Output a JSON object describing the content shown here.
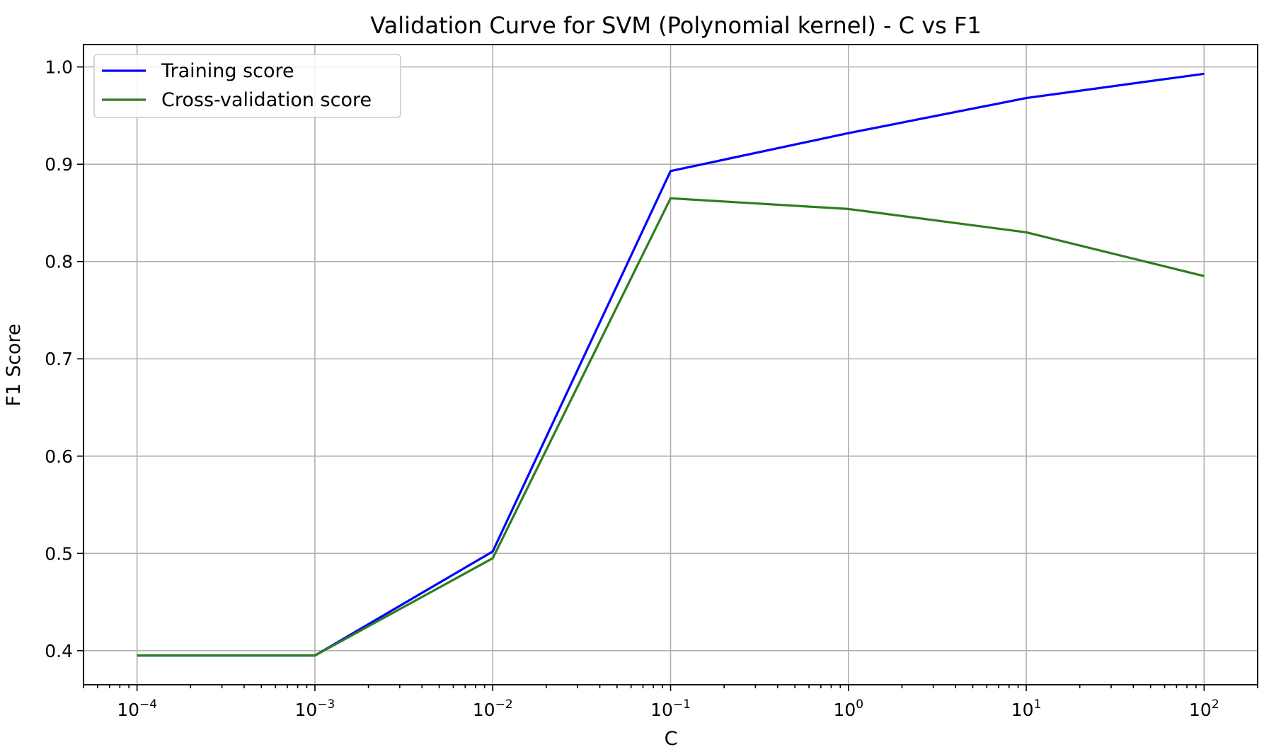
{
  "chart_data": {
    "type": "line",
    "title": "Validation Curve for SVM (Polynomial kernel) - C vs F1",
    "xlabel": "C",
    "ylabel": "F1 Score",
    "xscale": "log",
    "x": [
      0.0001,
      0.001,
      0.01,
      0.1,
      1,
      10,
      100
    ],
    "xlim": [
      5e-05,
      200
    ],
    "ylim": [
      0.365,
      1.023
    ],
    "x_ticks": [
      {
        "base": "10",
        "exp": "−4",
        "value": 0.0001
      },
      {
        "base": "10",
        "exp": "−3",
        "value": 0.001
      },
      {
        "base": "10",
        "exp": "−2",
        "value": 0.01
      },
      {
        "base": "10",
        "exp": "−1",
        "value": 0.1
      },
      {
        "base": "10",
        "exp": "0",
        "value": 1
      },
      {
        "base": "10",
        "exp": "1",
        "value": 10
      },
      {
        "base": "10",
        "exp": "2",
        "value": 100
      }
    ],
    "y_ticks": [
      "0.4",
      "0.5",
      "0.6",
      "0.7",
      "0.8",
      "0.9",
      "1.0"
    ],
    "grid": true,
    "legend_position": "upper-left",
    "series": [
      {
        "name": "Training score",
        "color": "#0000ff",
        "values": [
          0.395,
          0.395,
          0.502,
          0.893,
          0.932,
          0.968,
          0.993
        ]
      },
      {
        "name": "Cross-validation score",
        "color": "#2e7d1e",
        "values": [
          0.395,
          0.395,
          0.495,
          0.865,
          0.854,
          0.83,
          0.785
        ]
      }
    ]
  }
}
